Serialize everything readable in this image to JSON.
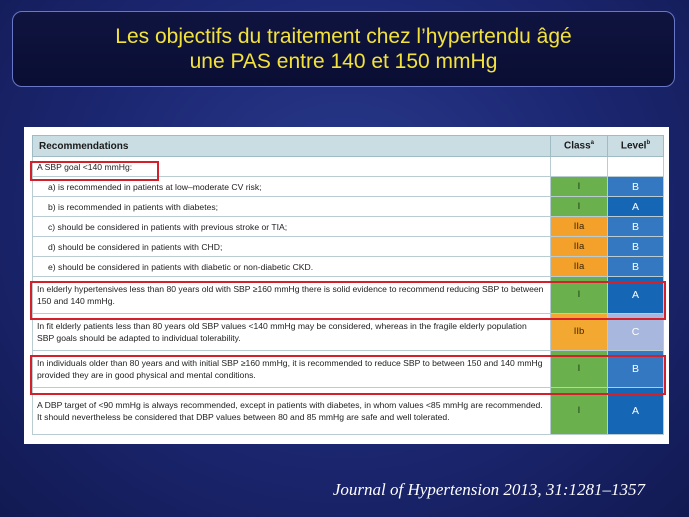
{
  "title": {
    "line1": "Les objectifs du traitement chez l’hypertendu âgé",
    "line2": "une PAS entre 140 et 150 mmHg"
  },
  "table": {
    "headers": {
      "recommendations": "Recommendations",
      "class": "Class",
      "class_sup": "a",
      "level": "Level",
      "level_sup": "b"
    },
    "rows": [
      {
        "text": "A SBP goal <140 mmHg:",
        "class": "",
        "level": ""
      },
      {
        "text": "a) is recommended in patients at low–moderate CV risk;",
        "class": "I",
        "level": "B"
      },
      {
        "text": "b) is recommended in patients with diabetes;",
        "class": "I",
        "level": "A"
      },
      {
        "text": "c) should be considered in patients with previous stroke or TIA;",
        "class": "IIa",
        "level": "B"
      },
      {
        "text": "d) should be considered in patients with CHD;",
        "class": "IIa",
        "level": "B"
      },
      {
        "text": "e) should be considered in patients with diabetic or non-diabetic CKD.",
        "class": "IIa",
        "level": "B"
      },
      {
        "text": "In elderly hypertensives less than 80 years old with SBP ≥160 mmHg there is solid evidence to recommend reducing SBP to between 150 and 140 mmHg.",
        "class": "I",
        "level": "A"
      },
      {
        "text": "In fit elderly patients less than 80 years old SBP values <140 mmHg may be considered, whereas in the fragile elderly population SBP goals should be adapted to individual tolerability.",
        "class": "IIb",
        "level": "C"
      },
      {
        "text": "In individuals older than 80 years and with initial SBP ≥160 mmHg, it is recommended to reduce SBP to between 150 and 140 mmHg provided they are in good physical and mental conditions.",
        "class": "I",
        "level": "B"
      },
      {
        "text": "A DBP target of <90 mmHg is always recommended, except in patients with diabetes, in whom values <85 mmHg are recommended. It should nevertheless be considered that DBP values between 80 and 85 mmHg are safe and well tolerated.",
        "class": "I",
        "level": "A"
      }
    ]
  },
  "citation": "Journal of Hypertension 2013, 31:1281–1357",
  "colors": {
    "title_text": "#f2e23a",
    "highlight_box": "#d4202a",
    "class_I": "#6ab04c",
    "class_IIa": "#f3a12a",
    "level_A": "#1566b4",
    "level_B": "#3478c2",
    "level_C": "#a7b7de"
  }
}
